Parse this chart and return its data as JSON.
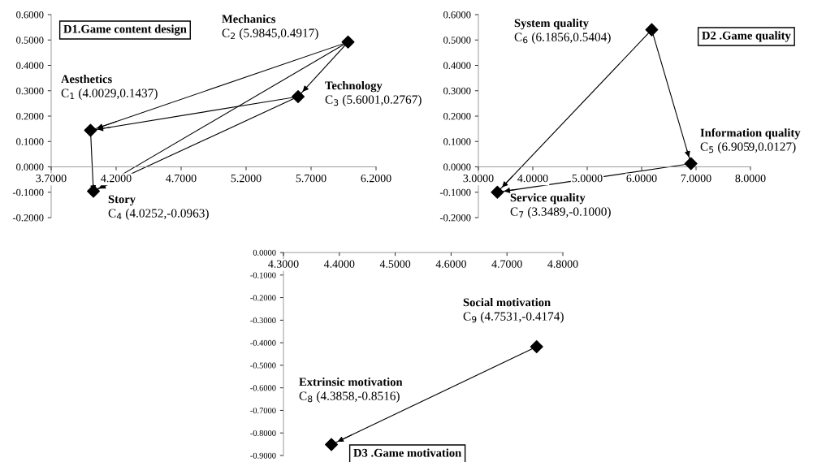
{
  "chart_data": [
    {
      "type": "scatter",
      "title": "D1.Game content design",
      "xlim": [
        3.7,
        6.2
      ],
      "ylim": [
        -0.2,
        0.6
      ],
      "xticks": [
        {
          "value": 3.7,
          "label": "3.7000"
        },
        {
          "value": 4.2,
          "label": "4.2000"
        },
        {
          "value": 4.7,
          "label": "4.7000"
        },
        {
          "value": 5.2,
          "label": "5.2000"
        },
        {
          "value": 5.7,
          "label": "5.7000"
        },
        {
          "value": 6.2,
          "label": "6.2000"
        }
      ],
      "yticks": [
        {
          "value": -0.2,
          "label": "-0.2000"
        },
        {
          "value": -0.1,
          "label": "-0.1000"
        },
        {
          "value": 0,
          "label": "0.0000"
        },
        {
          "value": 0.1,
          "label": "0.1000"
        },
        {
          "value": 0.2,
          "label": "0.2000"
        },
        {
          "value": 0.3,
          "label": "0.3000"
        },
        {
          "value": 0.4,
          "label": "0.4000"
        },
        {
          "value": 0.5,
          "label": "0.5000"
        },
        {
          "value": 0.6,
          "label": "0.6000"
        }
      ],
      "series": [
        {
          "marker": "diamond",
          "color": "#000000",
          "x": [
            4.0029,
            5.9845,
            5.6001,
            4.0252
          ],
          "values": [
            0.1437,
            0.4917,
            0.2767,
            -0.0963
          ]
        },
        {
          "type": "line",
          "color": "#000000",
          "x": [
            5.9845,
            4.0029
          ],
          "values": [
            0.4917,
            0.1437
          ]
        },
        {
          "type": "line",
          "color": "#000000",
          "x": [
            5.6001,
            4.0029
          ],
          "values": [
            0.2767,
            0.1437
          ]
        },
        {
          "type": "line",
          "color": "#000000",
          "x": [
            5.9845,
            5.6001
          ],
          "values": [
            0.4917,
            0.2767
          ]
        },
        {
          "type": "line",
          "color": "#000000",
          "x": [
            5.9845,
            4.0252
          ],
          "values": [
            0.4917,
            -0.0963
          ]
        },
        {
          "type": "line",
          "color": "#000000",
          "x": [
            5.6001,
            4.0252
          ],
          "values": [
            0.2767,
            -0.0963
          ]
        },
        {
          "type": "line",
          "color": "#000000",
          "x": [
            4.0029,
            4.0252
          ],
          "values": [
            0.1437,
            -0.0963
          ]
        }
      ],
      "annotations": [
        "Aesthetics\nC$_{1}$ (4.0029,0.1437)",
        "Mechanics\nC$_{2}$ (5.9845,0.4917)",
        "Technology\nC$_{3}$ (5.6001,0.2767)",
        "Story\nC$_{4}$ (4.0252,-0.0963)"
      ]
    },
    {
      "type": "scatter",
      "title": "D2 .Game quality",
      "xlim": [
        3.0,
        8.0
      ],
      "ylim": [
        -0.2,
        0.6
      ],
      "xticks": [
        {
          "value": 3,
          "label": "3.0000"
        },
        {
          "value": 4,
          "label": "4.0000"
        },
        {
          "value": 5,
          "label": "5.0000"
        },
        {
          "value": 6,
          "label": "6.0000"
        },
        {
          "value": 7,
          "label": "7.0000"
        },
        {
          "value": 8,
          "label": "8.0000"
        }
      ],
      "yticks": [
        {
          "value": -0.2,
          "label": "-0.2000"
        },
        {
          "value": -0.1,
          "label": "-0.1000"
        },
        {
          "value": 0,
          "label": "0.0000"
        },
        {
          "value": 0.1,
          "label": "0.1000"
        },
        {
          "value": 0.2,
          "label": "0.2000"
        },
        {
          "value": 0.3,
          "label": "0.3000"
        },
        {
          "value": 0.4,
          "label": "0.4000"
        },
        {
          "value": 0.5,
          "label": "0.5000"
        },
        {
          "value": 0.6,
          "label": "0.6000"
        }
      ],
      "series": [
        {
          "marker": "diamond",
          "color": "#000000",
          "x": [
            6.9059,
            6.1856,
            3.3489
          ],
          "values": [
            0.0127,
            0.5404,
            -0.1
          ]
        },
        {
          "type": "line",
          "color": "#000000",
          "x": [
            6.1856,
            6.9059
          ],
          "values": [
            0.5404,
            0.0127
          ]
        },
        {
          "type": "line",
          "color": "#000000",
          "x": [
            6.1856,
            3.3489
          ],
          "values": [
            0.5404,
            -0.1
          ]
        },
        {
          "type": "line",
          "color": "#000000",
          "x": [
            6.9059,
            3.3489
          ],
          "values": [
            0.0127,
            -0.1
          ]
        }
      ],
      "annotations": [
        "Information quality\nC$_{5}$ (6.9059,0.0127)",
        "System quality\nC$_{6}$ (6.1856,0.5404)",
        "Service quality\nC$_{7}$ (3.3489,-0.1000)"
      ]
    },
    {
      "type": "scatter",
      "title": "D3 .Game motivation",
      "xlim": [
        4.3,
        4.8
      ],
      "ylim": [
        -0.9,
        0
      ],
      "xticks": [
        {
          "value": 4.3,
          "label": "4.3000"
        },
        {
          "value": 4.4,
          "label": "4.4000"
        },
        {
          "value": 4.5,
          "label": "4.5000"
        },
        {
          "value": 4.6,
          "label": "4.6000"
        },
        {
          "value": 4.7,
          "label": "4.7000"
        },
        {
          "value": 4.8,
          "label": "4.8000"
        }
      ],
      "yticks": [
        {
          "value": -0.9,
          "label": "-0.9000"
        },
        {
          "value": -0.8,
          "label": "-0.8000"
        },
        {
          "value": -0.7,
          "label": "-0.7000"
        },
        {
          "value": -0.6,
          "label": "-0.6000"
        },
        {
          "value": -0.5,
          "label": "-0.5000"
        },
        {
          "value": -0.4,
          "label": "-0.4000"
        },
        {
          "value": -0.3,
          "label": "-0.3000"
        },
        {
          "value": -0.2,
          "label": "-0.2000"
        },
        {
          "value": -0.1,
          "label": "-0.1000"
        },
        {
          "value": 0,
          "label": "0.0000"
        }
      ],
      "series": [
        {
          "marker": "diamond",
          "color": "#000000",
          "x": [
            4.3858,
            4.7531
          ],
          "values": [
            -0.8516,
            -0.4174
          ]
        },
        {
          "type": "line",
          "color": "#000000",
          "x": [
            4.7531,
            4.3858
          ],
          "values": [
            -0.4174,
            -0.8516
          ]
        }
      ],
      "annotations": [
        "Extrinsic motivation\nC$_{8}$ (4.3858,-0.8516)",
        "Social motivation\nC$_{9}$ (4.7531,-0.4174)"
      ]
    }
  ]
}
